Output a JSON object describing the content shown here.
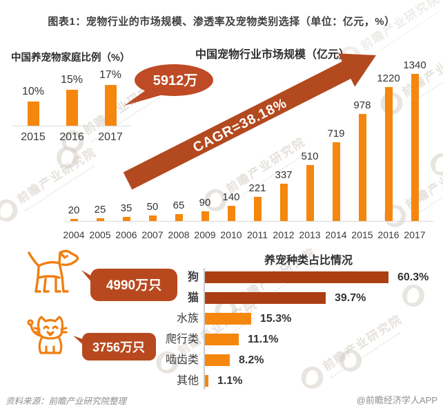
{
  "title": "图表1：宠物行业的市场规模、渗透率及宠物类别选择（单位：亿元，%）",
  "watermark": {
    "text": "前瞻产业研究院"
  },
  "colors": {
    "orange": "#F5870E",
    "brick": "#B8491F",
    "brick_dark": "#AC3E13",
    "icon_orange": "#F07E10"
  },
  "chart_data": [
    {
      "type": "bar",
      "title": "中国养宠物家庭比例（%）",
      "categories": [
        "2015",
        "2016",
        "2017"
      ],
      "values": [
        10,
        15,
        17
      ],
      "value_labels": [
        "10%",
        "15%",
        "17%"
      ],
      "unit": "%",
      "ylim": [
        0,
        20
      ],
      "callout": "5912万",
      "grid": false
    },
    {
      "type": "bar",
      "title": "中国宠物行业市场规模（亿元）",
      "categories": [
        "2004",
        "2005",
        "2006",
        "2007",
        "2008",
        "2009",
        "2010",
        "2011",
        "2012",
        "2013",
        "2014",
        "2015",
        "2016",
        "2017"
      ],
      "values": [
        20,
        25,
        35,
        50,
        65,
        90,
        140,
        221,
        337,
        510,
        719,
        978,
        1220,
        1340
      ],
      "unit": "亿元",
      "ylim": [
        0,
        1340
      ],
      "annotation": "CAGR=38.18%",
      "grid": false
    },
    {
      "type": "bar",
      "orientation": "horizontal",
      "title": "养宠种类占比情况",
      "categories": [
        "狗",
        "猫",
        "水族",
        "爬行类",
        "啮齿类",
        "其他"
      ],
      "values": [
        60.3,
        39.7,
        15.3,
        11.1,
        8.2,
        1.1
      ],
      "value_labels": [
        "60.3%",
        "39.7%",
        "15.3%",
        "11.1%",
        "8.2%",
        "1.1%"
      ],
      "unit": "%",
      "xlim": [
        0,
        65
      ],
      "callouts": [
        {
          "for": "狗",
          "label": "4990万只"
        },
        {
          "for": "猫",
          "label": "3756万只"
        }
      ],
      "grid": false
    }
  ],
  "footer": {
    "source": "资料来源：前瞻产业研究院整理",
    "credit": "@前瞻经济学人APP"
  }
}
